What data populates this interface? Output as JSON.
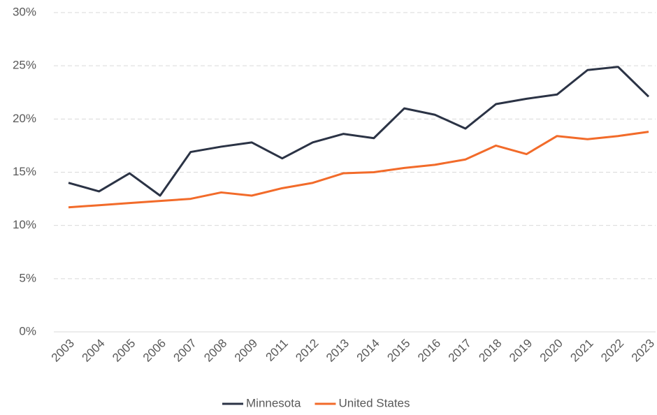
{
  "chart_data": {
    "type": "line",
    "categories": [
      "2003",
      "2004",
      "2005",
      "2006",
      "2007",
      "2008",
      "2009",
      "2011",
      "2012",
      "2013",
      "2014",
      "2015",
      "2016",
      "2017",
      "2018",
      "2019",
      "2020",
      "2021",
      "2022",
      "2023"
    ],
    "series": [
      {
        "name": "Minnesota",
        "color": "#2b3345",
        "values": [
          14.0,
          13.2,
          14.9,
          12.8,
          16.9,
          17.4,
          17.8,
          16.3,
          17.8,
          18.6,
          18.2,
          21.0,
          20.4,
          19.1,
          21.4,
          21.9,
          22.3,
          24.6,
          24.9,
          22.1
        ]
      },
      {
        "name": "United States",
        "color": "#f26b2a",
        "values": [
          11.7,
          11.9,
          12.1,
          12.3,
          12.5,
          13.1,
          12.8,
          13.5,
          14.0,
          14.9,
          15.0,
          15.4,
          15.7,
          16.2,
          17.5,
          16.7,
          18.4,
          18.1,
          18.4,
          18.8
        ]
      }
    ],
    "ylim": [
      0,
      30
    ],
    "yticks": [
      {
        "value": 0,
        "label": "0%"
      },
      {
        "value": 5,
        "label": "5%"
      },
      {
        "value": 10,
        "label": "10%"
      },
      {
        "value": 15,
        "label": "15%"
      },
      {
        "value": 20,
        "label": "20%"
      },
      {
        "value": 25,
        "label": "25%"
      },
      {
        "value": 30,
        "label": "30%"
      }
    ],
    "grid": true,
    "legend": "bottom"
  }
}
